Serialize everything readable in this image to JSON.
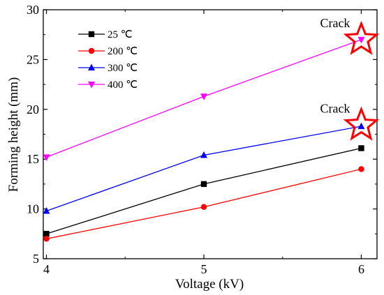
{
  "chart_data": {
    "type": "line",
    "xlabel": "Voltage (kV)",
    "ylabel": "Forming height (mm)",
    "x": [
      4,
      5,
      6
    ],
    "xlim": [
      3.98,
      6.1
    ],
    "ylim": [
      5,
      30
    ],
    "xticks": [
      4,
      5,
      6
    ],
    "yticks": [
      5,
      10,
      15,
      20,
      25,
      30
    ],
    "legend_position": "top-left",
    "grid": false,
    "series": [
      {
        "name": "25 ℃",
        "values": [
          7.5,
          12.5,
          16.1
        ],
        "color": "#000000",
        "marker": "square"
      },
      {
        "name": "200 ℃",
        "values": [
          7.0,
          10.2,
          14.0
        ],
        "color": "#ff0000",
        "marker": "circle"
      },
      {
        "name": "300 ℃",
        "values": [
          9.8,
          15.4,
          18.3
        ],
        "color": "#0000ff",
        "marker": "triangle-up"
      },
      {
        "name": "400 ℃",
        "values": [
          15.2,
          21.3,
          27.0
        ],
        "color": "#ff00ff",
        "marker": "triangle-down"
      }
    ],
    "annotations": [
      {
        "text": "Crack",
        "x": 6,
        "y": 27.0,
        "marker": "star",
        "color": "#ff0000"
      },
      {
        "text": "Crack",
        "x": 6,
        "y": 18.4,
        "marker": "star",
        "color": "#ff0000"
      }
    ]
  }
}
